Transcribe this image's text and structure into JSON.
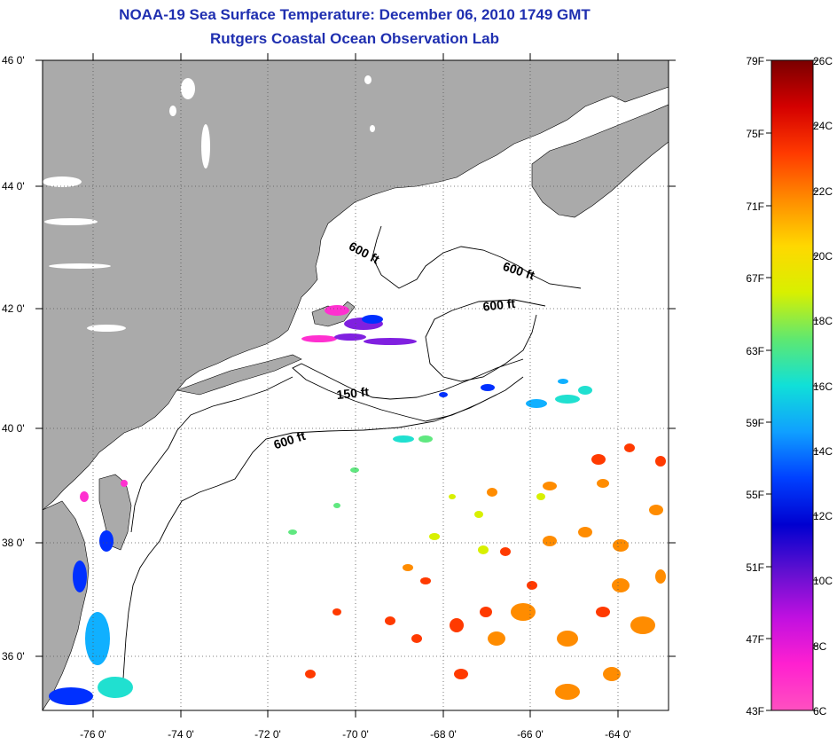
{
  "title": {
    "line1": "NOAA-19 Sea Surface Temperature:  December 06, 2010 1749 GMT",
    "line2": "Rutgers Coastal Ocean Observation Lab"
  },
  "map": {
    "lat_labels": [
      "46 0'",
      "44 0'",
      "42 0'",
      "40 0'",
      "38 0'",
      "36 0'"
    ],
    "lon_labels": [
      "-76 0'",
      "-74 0'",
      "-72 0'",
      "-70 0'",
      "-68 0'",
      "-66 0'",
      "-64 0'"
    ],
    "contour_labels": [
      "600 ft",
      "600 ft",
      "600 ft",
      "150 ft",
      "600 ft"
    ],
    "colors": {
      "land": "#aaaaaa",
      "ocean": "#ffffff",
      "grid": "#555555",
      "title": "#1f2fb0"
    }
  },
  "colorbar": {
    "fahrenheit": [
      "79F",
      "75F",
      "71F",
      "67F",
      "63F",
      "59F",
      "55F",
      "51F",
      "47F",
      "43F"
    ],
    "celsius": [
      "26C",
      "24C",
      "22C",
      "20C",
      "18C",
      "16C",
      "14C",
      "12C",
      "10C",
      "8C",
      "6C"
    ],
    "gradient": [
      "#7a0000",
      "#d40000",
      "#ff3a00",
      "#ff8c00",
      "#ffd800",
      "#d8f000",
      "#5fe870",
      "#10e0d8",
      "#10a0ff",
      "#0040ff",
      "#0000d0",
      "#6010d0",
      "#c010e0",
      "#ff20d0",
      "#ff50c0"
    ]
  }
}
